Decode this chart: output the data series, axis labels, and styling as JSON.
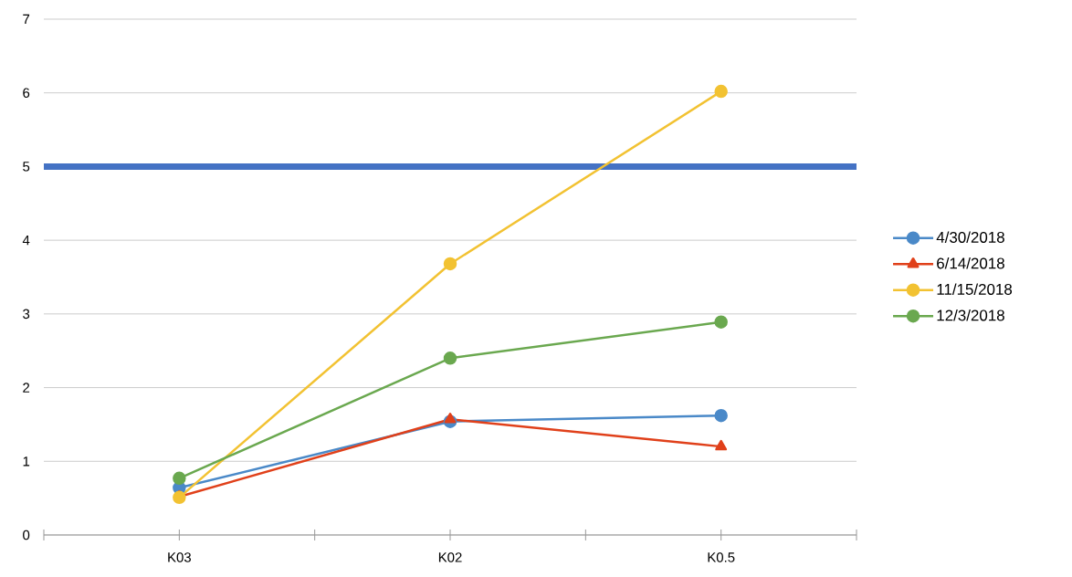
{
  "chart_data": {
    "type": "line",
    "categories": [
      "K03",
      "K02",
      "K0.5"
    ],
    "series": [
      {
        "name": "4/30/2018",
        "color": "#4a89c8",
        "marker": "circle",
        "values": [
          0.64,
          1.54,
          1.62
        ]
      },
      {
        "name": "6/14/2018",
        "color": "#e0401a",
        "marker": "triangle",
        "values": [
          0.52,
          1.57,
          1.2
        ]
      },
      {
        "name": "11/15/2018",
        "color": "#f2c232",
        "marker": "circle",
        "values": [
          0.51,
          3.68,
          6.02
        ]
      },
      {
        "name": "12/3/2018",
        "color": "#6aa84f",
        "marker": "circle",
        "values": [
          0.77,
          2.4,
          2.89
        ]
      }
    ],
    "ylim": [
      0,
      7
    ],
    "yticks": [
      0,
      1,
      2,
      3,
      4,
      5,
      6,
      7
    ],
    "grid": "y",
    "legend": "right",
    "ref_lines": [
      {
        "axis": "y",
        "value": 5,
        "color": "#4472c4"
      }
    ]
  }
}
